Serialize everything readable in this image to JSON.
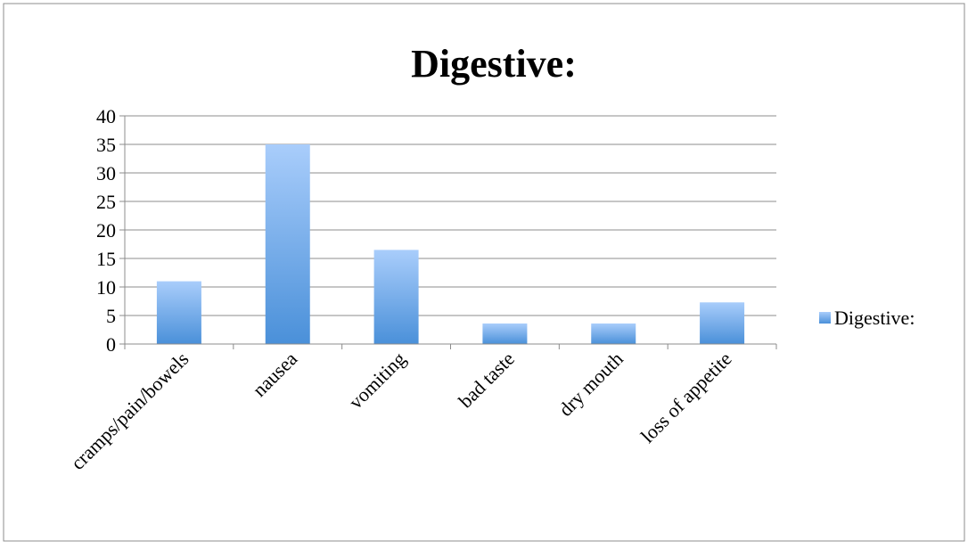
{
  "chart_data": {
    "type": "bar",
    "title": "Digestive:",
    "xlabel": "",
    "ylabel": "",
    "categories": [
      "cramps/pain/bowels",
      "nausea",
      "vomiting",
      "bad taste",
      "dry mouth",
      "loss of appetite"
    ],
    "series": [
      {
        "name": "Digestive:",
        "values": [
          11,
          35,
          16.5,
          3.6,
          3.6,
          7.3
        ]
      }
    ],
    "ylim": [
      0,
      40
    ],
    "yticks": [
      "0",
      "5",
      "10",
      "15",
      "20",
      "25",
      "30",
      "35",
      "40"
    ],
    "grid": true,
    "legend": "right",
    "colors": {
      "bar_top": "#a9cdfb",
      "bar_bottom": "#4a90d9",
      "grid": "#8c8c8c",
      "border": "#8c8c8c"
    }
  }
}
